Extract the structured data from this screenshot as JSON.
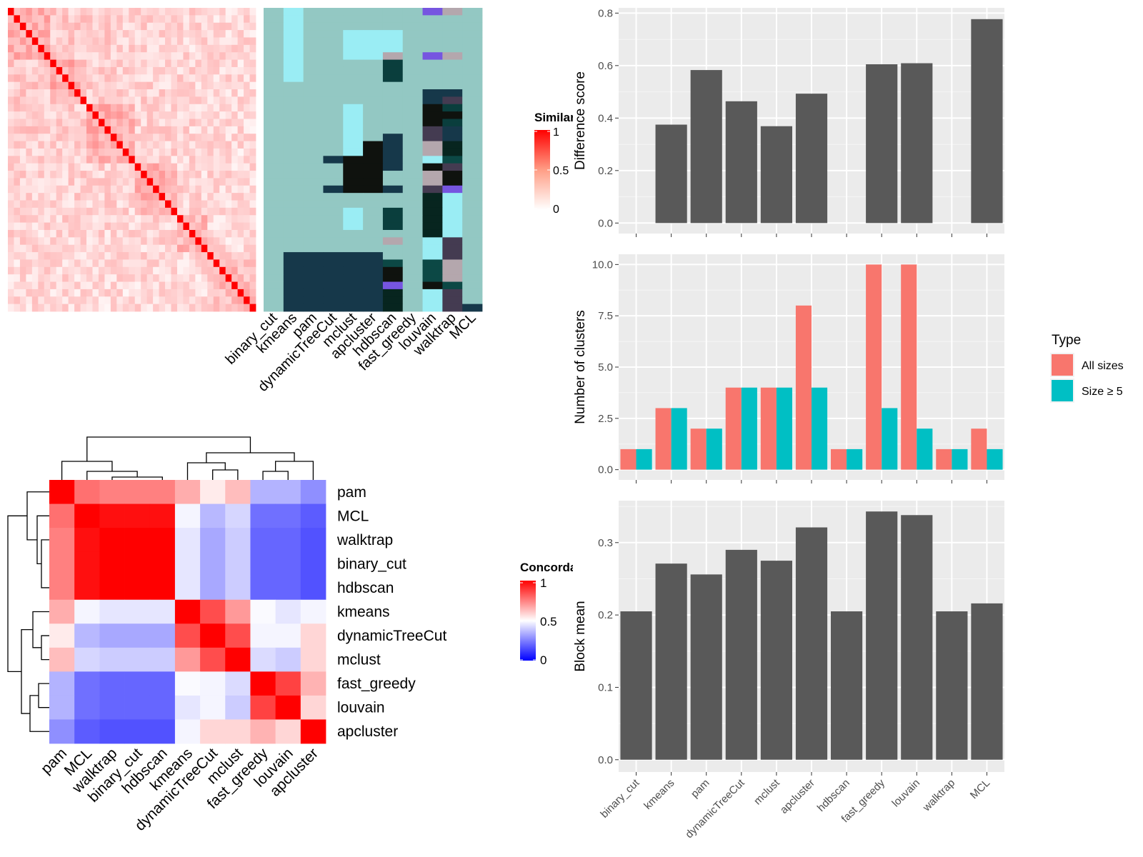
{
  "chart_data": [
    {
      "type": "heatmap",
      "methods": [
        "binary_cut",
        "kmeans",
        "pam",
        "dynamicTreeCut",
        "mclust",
        "apcluster",
        "hdbscan",
        "fast_greedy",
        "louvain",
        "walktrap",
        "MCL"
      ],
      "similarity_legend": {
        "title": "Similarity",
        "ticks": [
          "1",
          "0.5",
          "0"
        ],
        "low_color": "#FFFFFF",
        "high_color": "#FF0000"
      },
      "n_items": 41,
      "cluster_block_sizes": [
        7,
        6,
        8,
        7,
        5,
        8
      ],
      "palette": [
        "#93C8C3",
        "#9AEDF4",
        "#16384A",
        "#0F120E",
        "#0A3E3D",
        "#B4A7AD",
        "#7655E0",
        "#443B51",
        "#07251F",
        "#0C4845"
      ],
      "membership": [
        [
          0,
          1,
          0,
          0,
          0,
          0,
          0,
          0,
          6,
          5,
          0
        ],
        [
          0,
          1,
          0,
          0,
          0,
          0,
          0,
          0,
          0,
          0,
          0
        ],
        [
          0,
          1,
          0,
          0,
          0,
          0,
          0,
          0,
          0,
          0,
          0
        ],
        [
          0,
          1,
          0,
          0,
          1,
          1,
          1,
          0,
          0,
          0,
          0
        ],
        [
          0,
          1,
          0,
          0,
          1,
          1,
          1,
          0,
          0,
          0,
          0
        ],
        [
          0,
          1,
          0,
          0,
          1,
          1,
          1,
          0,
          0,
          0,
          0
        ],
        [
          0,
          1,
          0,
          0,
          1,
          1,
          5,
          0,
          6,
          5,
          0
        ],
        [
          0,
          1,
          0,
          0,
          0,
          0,
          4,
          0,
          0,
          0,
          0
        ],
        [
          0,
          1,
          0,
          0,
          0,
          0,
          4,
          0,
          0,
          0,
          0
        ],
        [
          0,
          1,
          0,
          0,
          0,
          0,
          4,
          0,
          0,
          0,
          0
        ],
        [
          0,
          0,
          0,
          0,
          0,
          0,
          0,
          0,
          0,
          0,
          0
        ],
        [
          0,
          0,
          0,
          0,
          0,
          0,
          0,
          0,
          2,
          2,
          0
        ],
        [
          0,
          0,
          0,
          0,
          0,
          0,
          0,
          0,
          2,
          7,
          0
        ],
        [
          0,
          0,
          0,
          0,
          1,
          0,
          0,
          0,
          3,
          4,
          0
        ],
        [
          0,
          0,
          0,
          0,
          1,
          0,
          0,
          0,
          3,
          3,
          0
        ],
        [
          0,
          0,
          0,
          0,
          1,
          0,
          0,
          0,
          3,
          4,
          0
        ],
        [
          0,
          0,
          0,
          0,
          1,
          0,
          0,
          0,
          7,
          2,
          0
        ],
        [
          0,
          0,
          0,
          0,
          1,
          0,
          2,
          0,
          7,
          2,
          0
        ],
        [
          0,
          0,
          0,
          0,
          1,
          3,
          2,
          0,
          5,
          8,
          0
        ],
        [
          0,
          0,
          0,
          0,
          1,
          3,
          2,
          0,
          5,
          8,
          0
        ],
        [
          0,
          0,
          0,
          2,
          3,
          3,
          2,
          0,
          1,
          9,
          0
        ],
        [
          0,
          0,
          0,
          0,
          3,
          3,
          2,
          0,
          3,
          7,
          0
        ],
        [
          0,
          0,
          0,
          0,
          3,
          3,
          0,
          0,
          5,
          3,
          0
        ],
        [
          0,
          0,
          0,
          0,
          3,
          3,
          0,
          0,
          5,
          3,
          0
        ],
        [
          0,
          0,
          0,
          2,
          3,
          3,
          2,
          0,
          7,
          6,
          0
        ],
        [
          0,
          0,
          0,
          0,
          0,
          0,
          0,
          0,
          8,
          1,
          0
        ],
        [
          0,
          0,
          0,
          0,
          0,
          0,
          0,
          0,
          8,
          1,
          0
        ],
        [
          0,
          0,
          0,
          0,
          1,
          0,
          4,
          0,
          8,
          1,
          0
        ],
        [
          0,
          0,
          0,
          0,
          1,
          0,
          4,
          0,
          8,
          1,
          0
        ],
        [
          0,
          0,
          0,
          0,
          1,
          0,
          4,
          0,
          8,
          1,
          0
        ],
        [
          0,
          0,
          0,
          0,
          0,
          0,
          0,
          0,
          8,
          1,
          0
        ],
        [
          0,
          0,
          0,
          0,
          0,
          0,
          5,
          0,
          1,
          7,
          0
        ],
        [
          0,
          0,
          0,
          0,
          0,
          0,
          0,
          0,
          1,
          7,
          0
        ],
        [
          0,
          2,
          2,
          2,
          2,
          2,
          0,
          0,
          1,
          7,
          0
        ],
        [
          0,
          2,
          2,
          2,
          2,
          2,
          9,
          0,
          9,
          5,
          0
        ],
        [
          0,
          2,
          2,
          2,
          2,
          2,
          3,
          0,
          9,
          5,
          0
        ],
        [
          0,
          2,
          2,
          2,
          2,
          2,
          3,
          0,
          9,
          5,
          0
        ],
        [
          0,
          2,
          2,
          2,
          2,
          2,
          6,
          0,
          3,
          9,
          0
        ],
        [
          0,
          2,
          2,
          2,
          2,
          2,
          8,
          0,
          1,
          7,
          0
        ],
        [
          0,
          2,
          2,
          2,
          2,
          2,
          8,
          0,
          1,
          7,
          0
        ],
        [
          0,
          2,
          2,
          2,
          2,
          2,
          8,
          0,
          1,
          7,
          2
        ]
      ]
    },
    {
      "type": "heatmap",
      "title": "Concordance",
      "rows": [
        "pam",
        "MCL",
        "walktrap",
        "binary_cut",
        "hdbscan",
        "kmeans",
        "dynamicTreeCut",
        "mclust",
        "fast_greedy",
        "louvain",
        "apcluster"
      ],
      "cols": [
        "pam",
        "MCL",
        "walktrap",
        "binary_cut",
        "hdbscan",
        "kmeans",
        "dynamicTreeCut",
        "mclust",
        "fast_greedy",
        "louvain",
        "apcluster"
      ],
      "values": [
        [
          1.0,
          0.78,
          0.75,
          0.75,
          0.75,
          0.66,
          0.54,
          0.63,
          0.35,
          0.35,
          0.28
        ],
        [
          0.78,
          1.0,
          0.97,
          0.97,
          0.97,
          0.48,
          0.36,
          0.42,
          0.22,
          0.22,
          0.18
        ],
        [
          0.75,
          0.97,
          1.0,
          1.0,
          1.0,
          0.45,
          0.33,
          0.4,
          0.2,
          0.2,
          0.16
        ],
        [
          0.75,
          0.97,
          1.0,
          1.0,
          1.0,
          0.45,
          0.33,
          0.4,
          0.2,
          0.2,
          0.16
        ],
        [
          0.75,
          0.97,
          1.0,
          1.0,
          1.0,
          0.45,
          0.33,
          0.4,
          0.2,
          0.2,
          0.16
        ],
        [
          0.66,
          0.48,
          0.45,
          0.45,
          0.45,
          1.0,
          0.85,
          0.7,
          0.49,
          0.45,
          0.48
        ],
        [
          0.54,
          0.36,
          0.33,
          0.33,
          0.33,
          0.85,
          1.0,
          0.85,
          0.48,
          0.48,
          0.58
        ],
        [
          0.63,
          0.42,
          0.4,
          0.4,
          0.4,
          0.7,
          0.85,
          1.0,
          0.43,
          0.4,
          0.58
        ],
        [
          0.35,
          0.22,
          0.2,
          0.2,
          0.2,
          0.49,
          0.48,
          0.43,
          1.0,
          0.87,
          0.65
        ],
        [
          0.35,
          0.22,
          0.2,
          0.2,
          0.2,
          0.45,
          0.48,
          0.4,
          0.87,
          1.0,
          0.58
        ],
        [
          0.28,
          0.18,
          0.16,
          0.16,
          0.16,
          0.48,
          0.58,
          0.58,
          0.65,
          0.58,
          1.0
        ]
      ],
      "legend": {
        "ticks": [
          "1",
          "0.5",
          "0"
        ],
        "low_color": "#0000FF",
        "mid_color": "#FFFFFF",
        "high_color": "#FF0000"
      }
    },
    {
      "type": "bar",
      "categories": [
        "binary_cut",
        "kmeans",
        "pam",
        "dynamicTreeCut",
        "mclust",
        "apcluster",
        "hdbscan",
        "fast_greedy",
        "louvain",
        "walktrap",
        "MCL"
      ],
      "values": [
        null,
        0.375,
        0.583,
        0.464,
        0.369,
        0.493,
        null,
        0.605,
        0.609,
        null,
        0.777
      ],
      "ylabel": "Difference score",
      "ylim": [
        -0.04,
        0.82
      ],
      "yticks": [
        "0.0",
        "0.2",
        "0.4",
        "0.6",
        "0.8"
      ],
      "bar_color": "#595959"
    },
    {
      "type": "bar",
      "categories": [
        "binary_cut",
        "kmeans",
        "pam",
        "dynamicTreeCut",
        "mclust",
        "apcluster",
        "hdbscan",
        "fast_greedy",
        "louvain",
        "walktrap",
        "MCL"
      ],
      "series": [
        {
          "name": "All sizes",
          "color": "#F8766D",
          "values": [
            1,
            3,
            2,
            4,
            4,
            8,
            1,
            10,
            10,
            1,
            2
          ]
        },
        {
          "name": "Size ≥ 5",
          "color": "#00BFC4",
          "values": [
            1,
            3,
            2,
            4,
            4,
            4,
            1,
            3,
            2,
            1,
            1
          ]
        }
      ],
      "ylabel": "Number of clusters",
      "ylim": [
        -0.5,
        10.5
      ],
      "yticks": [
        "0.0",
        "2.5",
        "5.0",
        "7.5",
        "10.0"
      ],
      "legend": {
        "title": "Type",
        "position": "right"
      }
    },
    {
      "type": "bar",
      "categories": [
        "binary_cut",
        "kmeans",
        "pam",
        "dynamicTreeCut",
        "mclust",
        "apcluster",
        "hdbscan",
        "fast_greedy",
        "louvain",
        "walktrap",
        "MCL"
      ],
      "values": [
        0.205,
        0.271,
        0.256,
        0.29,
        0.275,
        0.321,
        0.205,
        0.343,
        0.338,
        0.205,
        0.216
      ],
      "ylabel": "Block mean",
      "ylim": [
        -0.017,
        0.358
      ],
      "yticks": [
        "0.0",
        "0.1",
        "0.2",
        "0.3"
      ],
      "bar_color": "#595959"
    }
  ]
}
